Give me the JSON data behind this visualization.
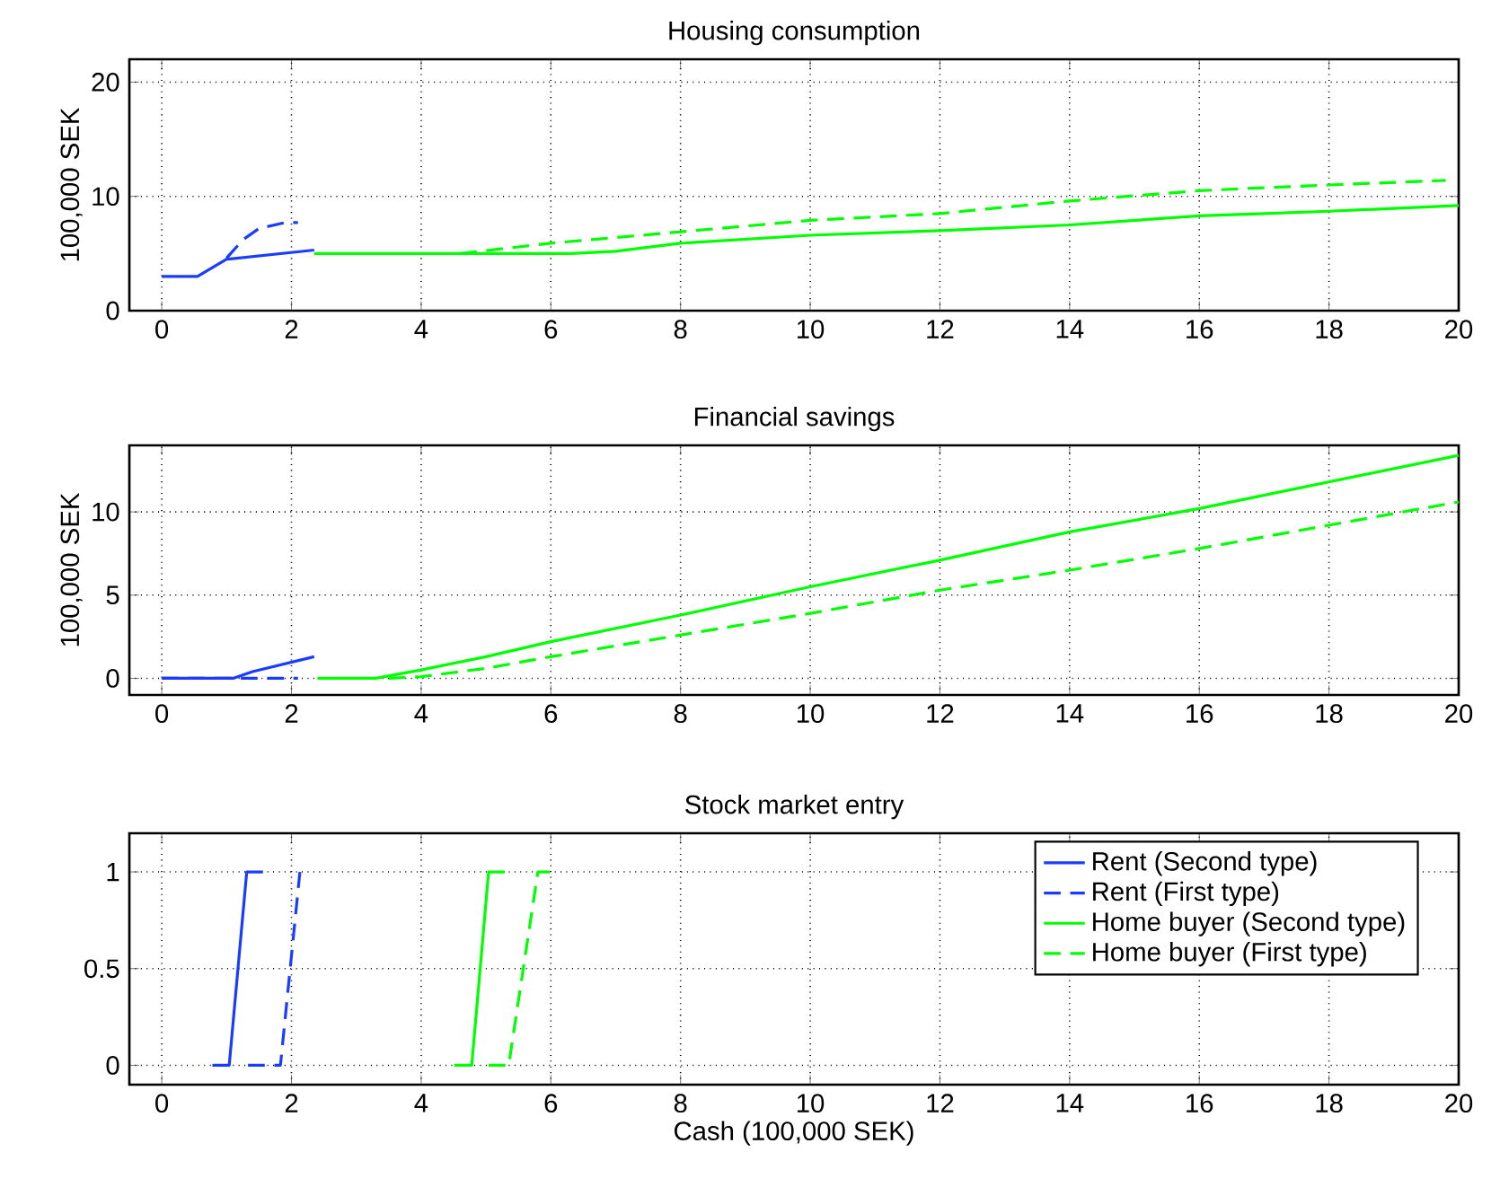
{
  "chart_data": [
    {
      "type": "line",
      "title": "Housing consumption",
      "ylabel": "100,000 SEK",
      "xlim": [
        -0.5,
        20
      ],
      "ylim": [
        0,
        22
      ],
      "xticks": [
        0,
        2,
        4,
        6,
        8,
        10,
        12,
        14,
        16,
        18,
        20
      ],
      "yticks": [
        0,
        10,
        20
      ],
      "grid": true,
      "series": [
        {
          "color": "#1a3cff",
          "line_style": "solid",
          "x": [
            0,
            0.55,
            1.0,
            2.35
          ],
          "values": [
            3.0,
            3.0,
            4.5,
            5.3
          ]
        },
        {
          "color": "#1a3cff",
          "line_style": "dashed",
          "x": [
            1.0,
            1.25,
            1.5,
            1.9,
            2.1
          ],
          "values": [
            4.6,
            6.2,
            7.2,
            7.7,
            7.7
          ]
        },
        {
          "color": "#00ff00",
          "line_style": "solid",
          "x": [
            2.35,
            6.3,
            7,
            8,
            10,
            12,
            14,
            16,
            17,
            18,
            20
          ],
          "values": [
            5.0,
            5.0,
            5.2,
            5.9,
            6.6,
            7.0,
            7.5,
            8.3,
            8.5,
            8.7,
            9.2
          ]
        },
        {
          "color": "#00ff00",
          "line_style": "dashed",
          "x": [
            4.6,
            6,
            8,
            10,
            12,
            14,
            16,
            18,
            19.8
          ],
          "values": [
            5.0,
            5.9,
            6.9,
            7.9,
            8.5,
            9.6,
            10.5,
            11.0,
            11.4
          ]
        }
      ]
    },
    {
      "type": "line",
      "title": "Financial savings",
      "ylabel": "100,000 SEK",
      "xlim": [
        -0.5,
        20
      ],
      "ylim": [
        -1,
        14
      ],
      "xticks": [
        0,
        2,
        4,
        6,
        8,
        10,
        12,
        14,
        16,
        18,
        20
      ],
      "yticks": [
        0,
        5,
        10
      ],
      "grid": true,
      "series": [
        {
          "color": "#1a3cff",
          "line_style": "solid",
          "x": [
            0,
            1.1,
            1.4,
            2.35
          ],
          "values": [
            0,
            0,
            0.4,
            1.3
          ]
        },
        {
          "color": "#1a3cff",
          "line_style": "dashed",
          "x": [
            0,
            2.1
          ],
          "values": [
            0,
            0
          ]
        },
        {
          "color": "#00ff00",
          "line_style": "solid",
          "x": [
            2.4,
            3.3,
            4,
            5,
            6,
            8,
            10,
            12,
            14,
            16,
            18,
            20
          ],
          "values": [
            0,
            0,
            0.5,
            1.3,
            2.2,
            3.8,
            5.5,
            7.1,
            8.8,
            10.2,
            11.8,
            13.4
          ]
        },
        {
          "color": "#00ff00",
          "line_style": "dashed",
          "x": [
            3.5,
            4,
            5,
            6,
            8,
            10,
            12,
            14,
            16,
            18,
            20
          ],
          "values": [
            0,
            0.1,
            0.6,
            1.3,
            2.6,
            3.9,
            5.3,
            6.5,
            7.8,
            9.2,
            10.6
          ]
        }
      ]
    },
    {
      "type": "line",
      "title": "Stock market entry",
      "xlabel": "Cash (100,000 SEK)",
      "xlim": [
        -0.5,
        20
      ],
      "ylim": [
        -0.1,
        1.2
      ],
      "xticks": [
        0,
        2,
        4,
        6,
        8,
        10,
        12,
        14,
        16,
        18,
        20
      ],
      "yticks": [
        0,
        0.5,
        1
      ],
      "grid": true,
      "legend": "top right",
      "series": [
        {
          "name": "Rent (Second type)",
          "color": "#1a3cff",
          "line_style": "solid",
          "x": [
            0.78,
            1.04,
            1.31,
            1.56
          ],
          "values": [
            0,
            0,
            1,
            1
          ]
        },
        {
          "name": "Rent (First type)",
          "color": "#1a3cff",
          "line_style": "dashed",
          "x": [
            1.33,
            1.83,
            2.13
          ],
          "values": [
            0,
            0,
            1
          ]
        },
        {
          "name": "Home buyer (Second type)",
          "color": "#00ff00",
          "line_style": "solid",
          "x": [
            4.51,
            4.78,
            5.04,
            5.29
          ],
          "values": [
            0,
            0,
            1,
            1
          ]
        },
        {
          "name": "Home buyer (First type)",
          "color": "#00ff00",
          "line_style": "dashed",
          "x": [
            5.04,
            5.35,
            5.8,
            6.0
          ],
          "values": [
            0,
            0,
            1,
            1
          ]
        }
      ]
    }
  ]
}
